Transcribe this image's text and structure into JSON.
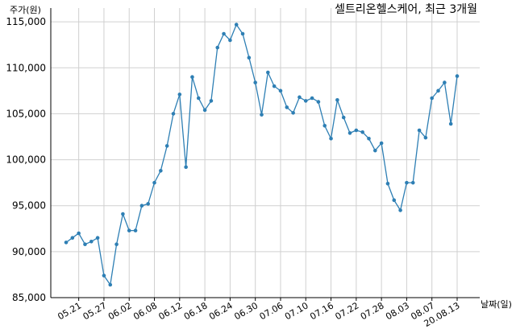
{
  "chart_data": {
    "type": "line",
    "title": "셀트리온헬스케어, 최근 3개월",
    "ylabel": "주가(원)",
    "xlabel": "날짜(일)",
    "ylim": [
      85000,
      116500
    ],
    "yticks": [
      85000,
      90000,
      95000,
      100000,
      105000,
      110000,
      115000
    ],
    "ytick_labels": [
      "85,000",
      "90,000",
      "95,000",
      "100,000",
      "105,000",
      "110,000",
      "115,000"
    ],
    "xtick_labels": [
      "05.21",
      "05.27",
      "06.02",
      "06.08",
      "06.12",
      "06.18",
      "06.24",
      "06.30",
      "07.06",
      "07.10",
      "07.16",
      "07.22",
      "07.28",
      "08.03",
      "08.07",
      "20.08.13"
    ],
    "xtick_index": [
      2,
      6,
      10,
      14,
      18,
      22,
      26,
      30,
      34,
      38,
      42,
      46,
      50,
      54,
      58,
      62
    ],
    "grid": true,
    "color": "#2e7fb4",
    "series": [
      {
        "values": [
          91000,
          91500,
          92000,
          90800,
          91100,
          91500,
          87400,
          86400,
          90800,
          94100,
          92300,
          92300,
          95000,
          95200,
          97500,
          98800,
          101500,
          105000,
          107100,
          99200,
          109000,
          106700,
          105400,
          106400,
          112200,
          113700,
          113000,
          114700,
          113700,
          111100,
          108400,
          104900,
          109500,
          108000,
          107500,
          105700,
          105100,
          106800,
          106400,
          106700,
          106300,
          103700,
          102300,
          106500,
          104600,
          102900,
          103200,
          103000,
          102300,
          101000,
          101800,
          97400,
          95600,
          94500,
          97500,
          97500,
          103200,
          102400,
          106700,
          107500,
          108400,
          103900,
          109100
        ]
      }
    ]
  }
}
